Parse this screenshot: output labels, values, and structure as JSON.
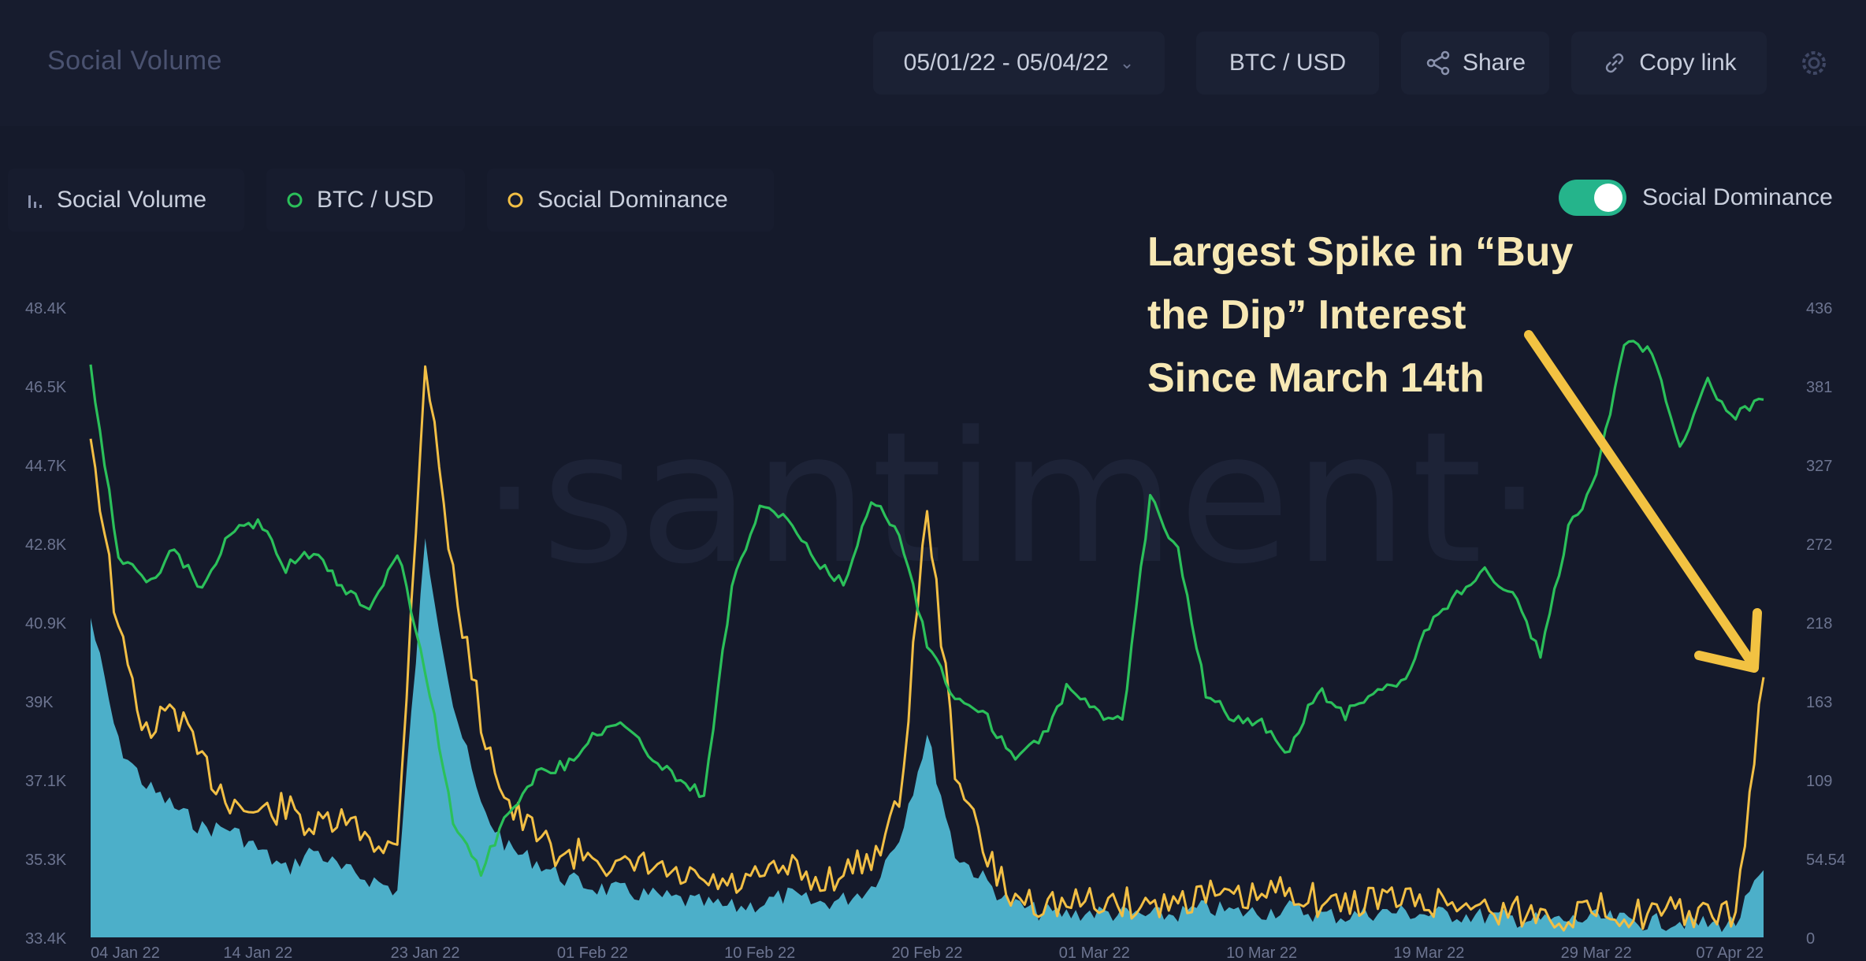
{
  "header": {
    "title": "Social Volume",
    "date_range": "05/01/22 - 05/04/22",
    "pair": "BTC / USD",
    "share_label": "Share",
    "copy_label": "Copy link"
  },
  "legend": {
    "volume_label": "Social Volume",
    "btc_label": "BTC / USD",
    "dominance_label": "Social Dominance"
  },
  "toggle": {
    "label": "Social Dominance",
    "on": true
  },
  "watermark": "·santiment·",
  "annotation": {
    "lines": [
      "Largest Spike in “Buy",
      "the Dip” Interest",
      "Since March 14th"
    ]
  },
  "colors": {
    "btc": "#2bc05a",
    "volume": "#4fb7d2",
    "dominance": "#f2bf45",
    "arrow": "#f2c242",
    "background": "#151a2b"
  },
  "chart_data": {
    "type": "line",
    "left_axis": {
      "ticks": [
        "33.4K",
        "35.3K",
        "37.1K",
        "39K",
        "40.9K",
        "42.8K",
        "44.7K",
        "46.5K",
        "48.4K"
      ],
      "range": [
        33400,
        48400
      ]
    },
    "right_axis": {
      "ticks": [
        "0",
        "54.54",
        "109",
        "163",
        "218",
        "272",
        "327",
        "381",
        "436"
      ],
      "range": [
        0,
        436
      ]
    },
    "x_axis": {
      "ticks": [
        "04 Jan 22",
        "14 Jan 22",
        "23 Jan 22",
        "01 Feb 22",
        "10 Feb 22",
        "20 Feb 22",
        "01 Mar 22",
        "10 Mar 22",
        "19 Mar 22",
        "29 Mar 22",
        "07 Apr 22"
      ]
    },
    "series": [
      {
        "name": "BTC / USD",
        "axis": "left",
        "values": [
          47000,
          42500,
          41800,
          42600,
          41700,
          43000,
          43300,
          42200,
          42600,
          41700,
          41200,
          42600,
          39800,
          36200,
          35000,
          36400,
          37300,
          37500,
          38200,
          38500,
          37800,
          37200,
          36800,
          41800,
          43600,
          43400,
          42300,
          41800,
          43800,
          43100,
          40400,
          39100,
          38800,
          37700,
          38000,
          39300,
          38800,
          38500,
          43900,
          42600,
          39200,
          38600,
          38500,
          37800,
          39300,
          38700,
          39300,
          39400,
          40800,
          41600,
          42100,
          41600,
          40100,
          43100,
          44300,
          47600,
          47400,
          45100,
          46600,
          45800,
          46200
        ]
      },
      {
        "name": "Social Dominance",
        "axis": "right",
        "values": [
          350,
          210,
          140,
          160,
          120,
          95,
          85,
          90,
          75,
          80,
          70,
          60,
          400,
          250,
          150,
          90,
          70,
          55,
          60,
          45,
          50,
          40,
          38,
          35,
          40,
          48,
          38,
          45,
          55,
          90,
          300,
          120,
          60,
          28,
          25,
          22,
          25,
          24,
          22,
          26,
          30,
          25,
          28,
          35,
          25,
          22,
          28,
          26,
          24,
          25,
          20,
          18,
          16,
          15,
          20,
          18,
          15,
          18,
          14,
          16,
          180
        ]
      },
      {
        "name": "Social Volume",
        "axis": "left",
        "values": [
          41000,
          38000,
          37000,
          36500,
          36000,
          36000,
          35500,
          35000,
          35500,
          35000,
          34800,
          34500,
          42800,
          39000,
          36500,
          35500,
          35200,
          34800,
          34600,
          34500,
          34400,
          34300,
          34200,
          34100,
          34200,
          34400,
          34200,
          34300,
          34600,
          35800,
          38200,
          35400,
          34800,
          34200,
          34000,
          33950,
          34000,
          33950,
          33900,
          33950,
          34100,
          34000,
          34000,
          34100,
          33950,
          33900,
          34000,
          34000,
          33950,
          33950,
          33900,
          33850,
          33800,
          33800,
          33850,
          33800,
          33750,
          33800,
          33700,
          33750,
          35000
        ]
      }
    ],
    "grid": false
  }
}
